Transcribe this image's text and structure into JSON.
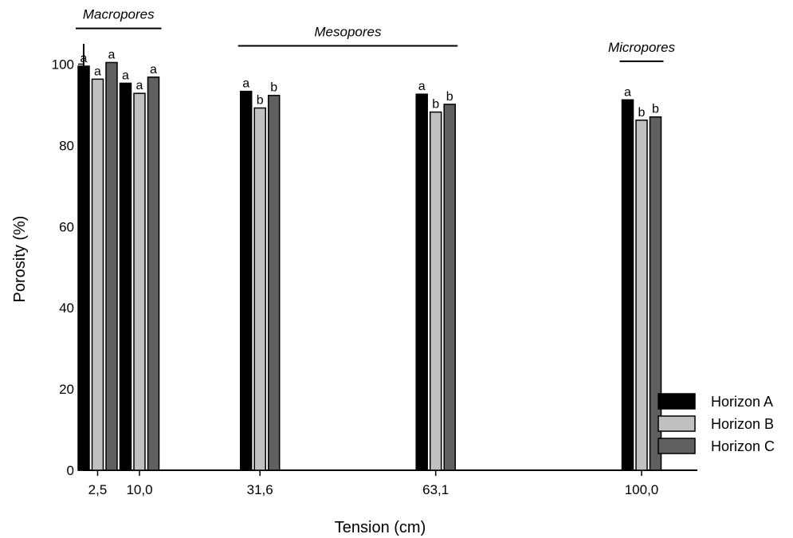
{
  "chart_data": {
    "type": "bar",
    "xlabel": "Tension (cm)",
    "ylabel": "Porosity (%)",
    "ylim": [
      0,
      105
    ],
    "yticks": [
      0,
      20,
      40,
      60,
      80,
      100
    ],
    "categories": [
      "2,5",
      "10,0",
      "31,6",
      "63,1",
      "100,0"
    ],
    "category_positions": [
      2.5,
      10.0,
      31.6,
      63.1,
      100.0
    ],
    "x_range": [
      0,
      110
    ],
    "series": [
      {
        "name": "Horizon A",
        "color": "#000000",
        "values": [
          99.5,
          95.3,
          93.3,
          92.6,
          91.2
        ],
        "labels": [
          "a",
          "a",
          "a",
          "a",
          "a"
        ]
      },
      {
        "name": "Horizon B",
        "color": "#c0c0c0",
        "values": [
          96.3,
          92.8,
          89.2,
          88.2,
          86.2
        ],
        "labels": [
          "a",
          "a",
          "b",
          "b",
          "b"
        ]
      },
      {
        "name": "Horizon C",
        "color": "#606060",
        "values": [
          100.4,
          96.8,
          92.3,
          90.1,
          87.0
        ],
        "labels": [
          "a",
          "a",
          "b",
          "b",
          "b"
        ]
      }
    ],
    "groups": [
      {
        "label": "Macropores",
        "from": 2.5,
        "to": 10.0,
        "y": 108.8
      },
      {
        "label": "Mesopores",
        "from": 31.6,
        "to": 63.1,
        "y": 104.5
      },
      {
        "label": "Micropores",
        "from": 100.0,
        "to": 100.0,
        "y": 100.7
      }
    ],
    "legend_position": "bottom-right",
    "grid": false
  }
}
